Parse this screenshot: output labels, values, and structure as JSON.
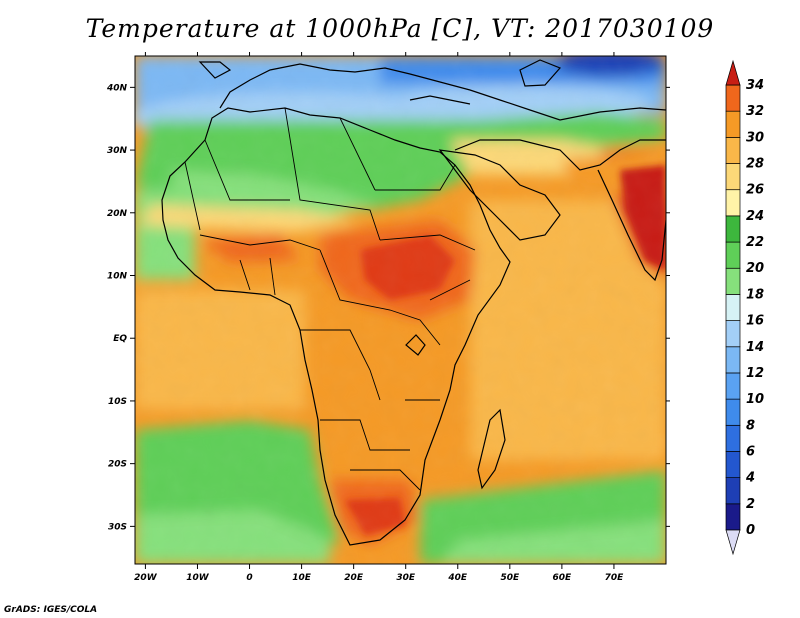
{
  "title": "Temperature at 1000hPa [C], VT: 2017030109",
  "footer": "GrADS: IGES/COLA",
  "map": {
    "lon_range": [
      -22,
      80
    ],
    "lat_range": [
      -36,
      45
    ],
    "lon_ticks": [
      {
        "value": -20,
        "label": "20W"
      },
      {
        "value": -10,
        "label": "10W"
      },
      {
        "value": 0,
        "label": "0"
      },
      {
        "value": 10,
        "label": "10E"
      },
      {
        "value": 20,
        "label": "20E"
      },
      {
        "value": 30,
        "label": "30E"
      },
      {
        "value": 40,
        "label": "40E"
      },
      {
        "value": 50,
        "label": "50E"
      },
      {
        "value": 60,
        "label": "60E"
      },
      {
        "value": 70,
        "label": "70E"
      }
    ],
    "lat_ticks": [
      {
        "value": 40,
        "label": "40N"
      },
      {
        "value": 30,
        "label": "30N"
      },
      {
        "value": 20,
        "label": "20N"
      },
      {
        "value": 10,
        "label": "10N"
      },
      {
        "value": 0,
        "label": "EQ"
      },
      {
        "value": -10,
        "label": "10S"
      },
      {
        "value": -20,
        "label": "20S"
      },
      {
        "value": -30,
        "label": "30S"
      }
    ]
  },
  "colorbar": {
    "levels": [
      {
        "value": 0,
        "label": "0",
        "color": "#1a1a8a"
      },
      {
        "value": 2,
        "label": "2",
        "color": "#1e3fb5"
      },
      {
        "value": 4,
        "label": "4",
        "color": "#2357cf"
      },
      {
        "value": 6,
        "label": "6",
        "color": "#2e6fe0"
      },
      {
        "value": 8,
        "label": "8",
        "color": "#3f8bec"
      },
      {
        "value": 10,
        "label": "10",
        "color": "#5aa2f2"
      },
      {
        "value": 12,
        "label": "12",
        "color": "#7bb8f4"
      },
      {
        "value": 14,
        "label": "14",
        "color": "#a3cff7"
      },
      {
        "value": 16,
        "label": "16",
        "color": "#d6f2f5"
      },
      {
        "value": 18,
        "label": "18",
        "color": "#86e07c"
      },
      {
        "value": 20,
        "label": "20",
        "color": "#5fcf58"
      },
      {
        "value": 22,
        "label": "22",
        "color": "#3db73d"
      },
      {
        "value": 24,
        "label": "24",
        "color": "#fff3a8"
      },
      {
        "value": 26,
        "label": "26",
        "color": "#fcd878"
      },
      {
        "value": 28,
        "label": "28",
        "color": "#f9b749"
      },
      {
        "value": 30,
        "label": "30",
        "color": "#f59a26"
      },
      {
        "value": 32,
        "label": "32",
        "color": "#f0671c"
      },
      {
        "value": 34,
        "label": "34",
        "color": "#e03a18"
      }
    ],
    "under_color": "#dcdcf5",
    "over_color": "#c81e14"
  }
}
